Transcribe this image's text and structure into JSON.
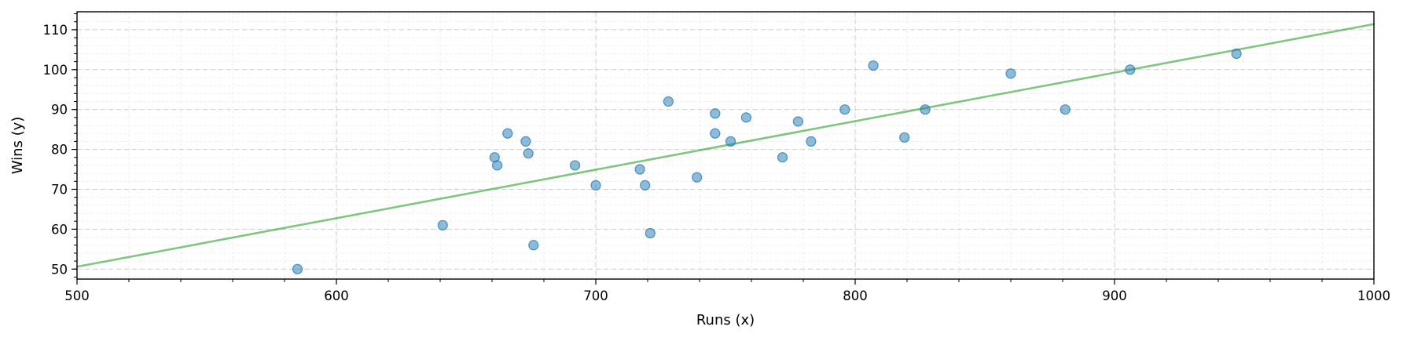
{
  "chart_data": {
    "type": "scatter",
    "xlabel": "Runs (x)",
    "ylabel": "Wins (y)",
    "xlim": [
      500,
      1000
    ],
    "ylim": [
      47.5,
      114.5
    ],
    "x_ticks": [
      500,
      600,
      700,
      800,
      900,
      1000
    ],
    "y_ticks": [
      50,
      60,
      70,
      80,
      90,
      100,
      110
    ],
    "grid": true,
    "minor_grid": true,
    "colors": {
      "points": "#1f77b4",
      "fit_line": "#2ca02c",
      "grid": "#b0b0b0"
    },
    "points": {
      "x": [
        585,
        641,
        661,
        662,
        666,
        673,
        674,
        676,
        692,
        700,
        717,
        719,
        721,
        728,
        739,
        746,
        746,
        752,
        758,
        772,
        778,
        783,
        796,
        807,
        819,
        827,
        860,
        881,
        906,
        947
      ],
      "y": [
        50,
        61,
        78,
        76,
        84,
        82,
        79,
        56,
        76,
        71,
        75,
        71,
        59,
        92,
        73,
        89,
        84,
        82,
        88,
        78,
        87,
        82,
        90,
        101,
        83,
        90,
        99,
        90,
        100,
        104
      ]
    },
    "fit_line": {
      "x": [
        500,
        1000
      ],
      "y": [
        50.6,
        111.4
      ]
    }
  }
}
